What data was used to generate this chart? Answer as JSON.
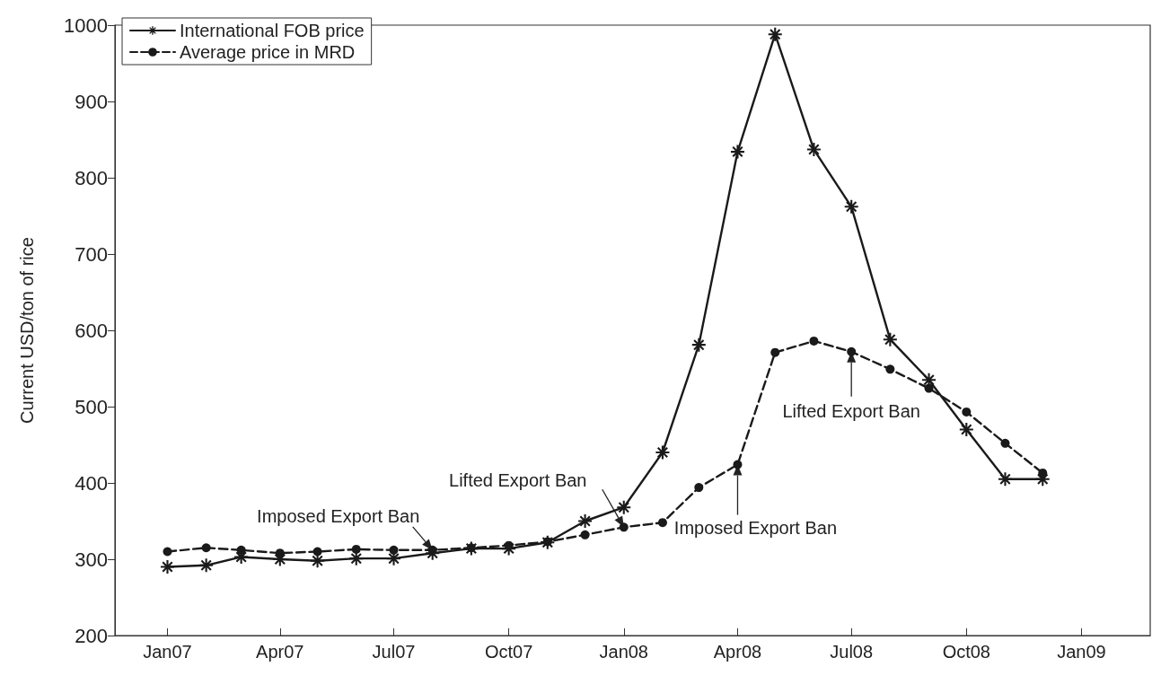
{
  "chart_data": {
    "type": "line",
    "ylabel": "Current USD/ton of rice",
    "x": [
      "2007-01",
      "2007-02",
      "2007-03",
      "2007-04",
      "2007-05",
      "2007-06",
      "2007-07",
      "2007-08",
      "2007-09",
      "2007-10",
      "2007-11",
      "2007-12",
      "2008-01",
      "2008-02",
      "2008-03",
      "2008-04",
      "2008-05",
      "2008-06",
      "2008-07",
      "2008-08",
      "2008-09",
      "2008-10",
      "2008-11",
      "2008-12"
    ],
    "series": [
      {
        "name": "International FOB price",
        "color": "#1a1a1a",
        "marker": "star",
        "line_style": "solid",
        "values": [
          290,
          292,
          303,
          300,
          298,
          301,
          301,
          308,
          314,
          314,
          322,
          350,
          368,
          440,
          581,
          834,
          988,
          837,
          762,
          588,
          535,
          470,
          405,
          405
        ]
      },
      {
        "name": "Average price in MRD",
        "color": "#1a1a1a",
        "marker": "circle",
        "line_style": "dashed",
        "values": [
          310,
          315,
          312,
          308,
          310,
          313,
          312,
          312,
          315,
          318,
          323,
          332,
          342,
          348,
          394,
          424,
          571,
          586,
          572,
          549,
          524,
          493,
          452,
          413
        ]
      }
    ],
    "xlim": [
      "2006-11-20",
      "2009-02-25"
    ],
    "xticks": [
      {
        "value": "2007-01",
        "label": "Jan07"
      },
      {
        "value": "2007-04",
        "label": "Apr07"
      },
      {
        "value": "2007-07",
        "label": "Jul07"
      },
      {
        "value": "2007-10",
        "label": "Oct07"
      },
      {
        "value": "2008-01",
        "label": "Jan08"
      },
      {
        "value": "2008-04",
        "label": "Apr08"
      },
      {
        "value": "2008-07",
        "label": "Jul08"
      },
      {
        "value": "2008-10",
        "label": "Oct08"
      },
      {
        "value": "2009-01",
        "label": "Jan09"
      }
    ],
    "ylim": [
      200,
      1000
    ],
    "yticks": [
      200,
      300,
      400,
      500,
      600,
      700,
      800,
      900,
      1000
    ],
    "grid": false,
    "legend": "top left",
    "annotations": [
      {
        "text": "Imposed Export Ban",
        "x": "2007-08",
        "y": 312
      },
      {
        "text": "Lifted Export Ban",
        "x": "2008-01",
        "y": 342
      },
      {
        "text": "Imposed Export Ban",
        "x": "2008-04",
        "y": 424
      },
      {
        "text": "Lifted Export Ban",
        "x": "2008-07",
        "y": 572
      }
    ]
  }
}
